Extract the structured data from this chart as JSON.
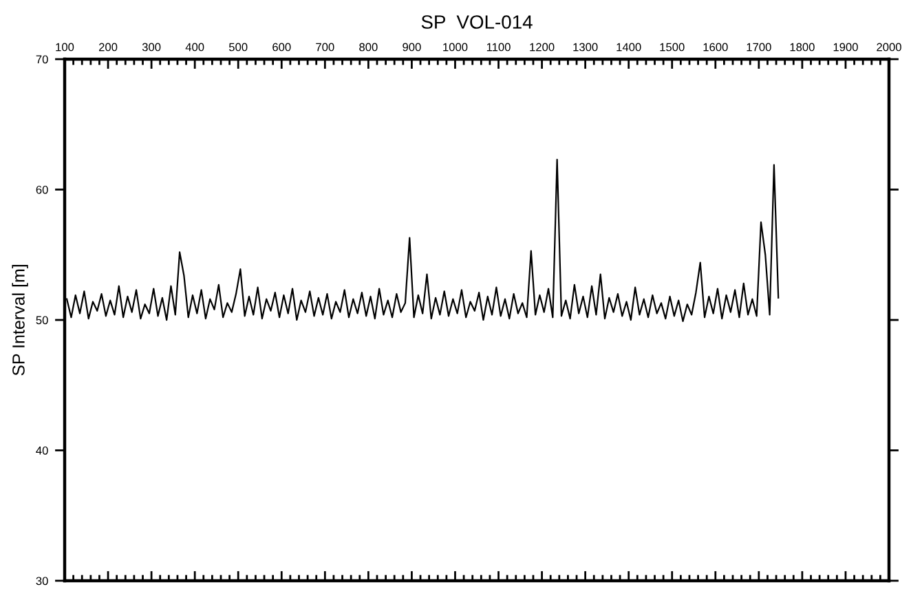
{
  "chart_data": {
    "type": "line",
    "title": "SP  VOL-014",
    "ylabel": "SP Interval [m]",
    "x": [
      105,
      115,
      125,
      135,
      145,
      155,
      165,
      175,
      185,
      195,
      205,
      215,
      225,
      235,
      245,
      255,
      265,
      275,
      285,
      295,
      305,
      315,
      325,
      335,
      345,
      355,
      365,
      375,
      385,
      395,
      405,
      415,
      425,
      435,
      445,
      455,
      465,
      475,
      485,
      495,
      505,
      515,
      525,
      535,
      545,
      555,
      565,
      575,
      585,
      595,
      605,
      615,
      625,
      635,
      645,
      655,
      665,
      675,
      685,
      695,
      705,
      715,
      725,
      735,
      745,
      755,
      765,
      775,
      785,
      795,
      805,
      815,
      825,
      835,
      845,
      855,
      865,
      875,
      885,
      895,
      905,
      915,
      925,
      935,
      945,
      955,
      965,
      975,
      985,
      995,
      1005,
      1015,
      1025,
      1035,
      1045,
      1055,
      1065,
      1075,
      1085,
      1095,
      1105,
      1115,
      1125,
      1135,
      1145,
      1155,
      1165,
      1175,
      1185,
      1195,
      1205,
      1215,
      1225,
      1235,
      1245,
      1255,
      1265,
      1275,
      1285,
      1295,
      1305,
      1315,
      1325,
      1335,
      1345,
      1355,
      1365,
      1375,
      1385,
      1395,
      1405,
      1415,
      1425,
      1435,
      1445,
      1455,
      1465,
      1475,
      1485,
      1495,
      1505,
      1515,
      1525,
      1535,
      1545,
      1555,
      1565,
      1575,
      1585,
      1595,
      1605,
      1615,
      1625,
      1635,
      1645,
      1655,
      1665,
      1675,
      1685,
      1695,
      1705,
      1715,
      1725,
      1735,
      1745
    ],
    "series": [
      {
        "color": "#000000",
        "values": [
          51.6,
          50.2,
          51.9,
          50.5,
          52.2,
          50.1,
          51.4,
          50.7,
          52.0,
          50.3,
          51.5,
          50.4,
          52.6,
          50.2,
          51.8,
          50.6,
          52.3,
          50.1,
          51.2,
          50.5,
          52.4,
          50.3,
          51.7,
          50.0,
          52.6,
          50.4,
          55.2,
          53.4,
          50.2,
          51.9,
          50.5,
          52.3,
          50.1,
          51.6,
          50.8,
          52.7,
          50.2,
          51.3,
          50.6,
          52.0,
          53.9,
          50.3,
          51.8,
          50.4,
          52.5,
          50.1,
          51.6,
          50.7,
          52.1,
          50.2,
          51.9,
          50.5,
          52.4,
          50.0,
          51.5,
          50.6,
          52.2,
          50.3,
          51.7,
          50.4,
          52.0,
          50.1,
          51.4,
          50.6,
          52.3,
          50.2,
          51.6,
          50.5,
          52.1,
          50.3,
          51.8,
          50.1,
          52.4,
          50.4,
          51.5,
          50.2,
          52.0,
          50.6,
          51.3,
          56.3,
          50.2,
          51.9,
          50.5,
          53.5,
          50.1,
          51.7,
          50.4,
          52.2,
          50.3,
          51.6,
          50.5,
          52.3,
          50.2,
          51.4,
          50.7,
          52.1,
          50.0,
          51.8,
          50.4,
          52.5,
          50.3,
          51.6,
          50.1,
          52.0,
          50.5,
          51.3,
          50.2,
          55.3,
          50.4,
          51.9,
          50.6,
          52.4,
          50.2,
          62.3,
          50.3,
          51.5,
          50.1,
          52.7,
          50.5,
          51.8,
          50.2,
          52.6,
          50.4,
          53.5,
          50.1,
          51.7,
          50.6,
          52.0,
          50.3,
          51.4,
          50.0,
          52.5,
          50.4,
          51.6,
          50.2,
          51.9,
          50.5,
          51.3,
          50.1,
          51.8,
          50.3,
          51.5,
          49.9,
          51.2,
          50.4,
          52.1,
          54.4,
          50.2,
          51.8,
          50.5,
          52.4,
          50.1,
          51.9,
          50.6,
          52.3,
          50.2,
          52.8,
          50.4,
          51.6,
          50.3,
          57.5,
          55.0,
          50.4,
          61.9,
          51.7
        ]
      }
    ],
    "xlim": [
      100,
      2000
    ],
    "xticks": [
      100,
      {
        "value": 120,
        "label": null
      },
      {
        "value": 140,
        "label": null
      },
      {
        "value": 160,
        "label": null
      },
      {
        "value": 180,
        "label": null
      },
      200,
      {
        "value": 220,
        "label": null
      },
      {
        "value": 240,
        "label": null
      },
      {
        "value": 260,
        "label": null
      },
      {
        "value": 280,
        "label": null
      },
      300,
      {
        "value": 320,
        "label": null
      },
      {
        "value": 340,
        "label": null
      },
      {
        "value": 360,
        "label": null
      },
      {
        "value": 380,
        "label": null
      },
      400,
      {
        "value": 420,
        "label": null
      },
      {
        "value": 440,
        "label": null
      },
      {
        "value": 460,
        "label": null
      },
      {
        "value": 480,
        "label": null
      },
      500,
      {
        "value": 520,
        "label": null
      },
      {
        "value": 540,
        "label": null
      },
      {
        "value": 560,
        "label": null
      },
      {
        "value": 580,
        "label": null
      },
      600,
      {
        "value": 620,
        "label": null
      },
      {
        "value": 640,
        "label": null
      },
      {
        "value": 660,
        "label": null
      },
      {
        "value": 680,
        "label": null
      },
      700,
      {
        "value": 720,
        "label": null
      },
      {
        "value": 740,
        "label": null
      },
      {
        "value": 760,
        "label": null
      },
      {
        "value": 780,
        "label": null
      },
      800,
      {
        "value": 820,
        "label": null
      },
      {
        "value": 840,
        "label": null
      },
      {
        "value": 860,
        "label": null
      },
      {
        "value": 880,
        "label": null
      },
      900,
      {
        "value": 920,
        "label": null
      },
      {
        "value": 940,
        "label": null
      },
      {
        "value": 960,
        "label": null
      },
      {
        "value": 980,
        "label": null
      },
      1000,
      {
        "value": 1020,
        "label": null
      },
      {
        "value": 1040,
        "label": null
      },
      {
        "value": 1060,
        "label": null
      },
      {
        "value": 1080,
        "label": null
      },
      1100,
      {
        "value": 1120,
        "label": null
      },
      {
        "value": 1140,
        "label": null
      },
      {
        "value": 1160,
        "label": null
      },
      {
        "value": 1180,
        "label": null
      },
      1200,
      {
        "value": 1220,
        "label": null
      },
      {
        "value": 1240,
        "label": null
      },
      {
        "value": 1260,
        "label": null
      },
      {
        "value": 1280,
        "label": null
      },
      1300,
      {
        "value": 1320,
        "label": null
      },
      {
        "value": 1340,
        "label": null
      },
      {
        "value": 1360,
        "label": null
      },
      {
        "value": 1380,
        "label": null
      },
      1400,
      {
        "value": 1420,
        "label": null
      },
      {
        "value": 1440,
        "label": null
      },
      {
        "value": 1460,
        "label": null
      },
      {
        "value": 1480,
        "label": null
      },
      1500,
      {
        "value": 1520,
        "label": null
      },
      {
        "value": 1540,
        "label": null
      },
      {
        "value": 1560,
        "label": null
      },
      {
        "value": 1580,
        "label": null
      },
      1600,
      {
        "value": 1620,
        "label": null
      },
      {
        "value": 1640,
        "label": null
      },
      {
        "value": 1660,
        "label": null
      },
      {
        "value": 1680,
        "label": null
      },
      1700,
      {
        "value": 1720,
        "label": null
      },
      {
        "value": 1740,
        "label": null
      },
      {
        "value": 1760,
        "label": null
      },
      {
        "value": 1780,
        "label": null
      },
      1800,
      {
        "value": 1820,
        "label": null
      },
      {
        "value": 1840,
        "label": null
      },
      {
        "value": 1860,
        "label": null
      },
      {
        "value": 1880,
        "label": null
      },
      1900,
      {
        "value": 1920,
        "label": null
      },
      {
        "value": 1940,
        "label": null
      },
      {
        "value": 1960,
        "label": null
      },
      {
        "value": 1980,
        "label": null
      },
      2000
    ],
    "ylim": [
      30,
      70
    ],
    "yticks": [
      30,
      40,
      50,
      60,
      70
    ],
    "grid": false
  }
}
